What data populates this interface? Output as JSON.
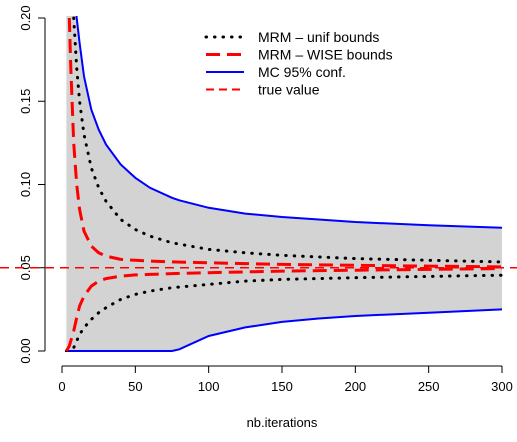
{
  "chart_data": {
    "type": "line",
    "title": "",
    "xlabel": "nb.iterations",
    "ylabel": "",
    "xlim": [
      0,
      300
    ],
    "ylim": [
      0,
      0.2
    ],
    "x_ticks": [
      0,
      50,
      100,
      150,
      200,
      250,
      300
    ],
    "x_tick_labels": [
      "0",
      "50",
      "100",
      "150",
      "200",
      "250",
      "300"
    ],
    "y_ticks": [
      0,
      0.05,
      0.1,
      0.15,
      0.2
    ],
    "y_tick_labels": [
      "0.00",
      "0.05",
      "0.10",
      "0.15",
      "0.20"
    ],
    "grid": false,
    "legend_position": "top-right",
    "colors": {
      "band": "#d3d3d3",
      "mc": "#0000ff",
      "wise": "#ff0000",
      "unif": "#000000",
      "true": "#ff0000"
    },
    "true_value": 0.05,
    "band": {
      "x": [
        3,
        5,
        8,
        10,
        12,
        15,
        20,
        25,
        30,
        40,
        50,
        60,
        75,
        80,
        100,
        125,
        150,
        175,
        200,
        250,
        300
      ],
      "upper": [
        0.35,
        0.3,
        0.22,
        0.2,
        0.185,
        0.165,
        0.145,
        0.133,
        0.124,
        0.112,
        0.104,
        0.098,
        0.092,
        0.0905,
        0.086,
        0.0825,
        0.0805,
        0.079,
        0.0775,
        0.0755,
        0.074
      ],
      "lower": [
        0,
        0,
        0,
        0,
        0,
        0,
        0,
        0,
        0,
        0,
        0,
        0,
        0,
        0.001,
        0.009,
        0.0142,
        0.0175,
        0.0195,
        0.021,
        0.023,
        0.025
      ]
    },
    "series": [
      {
        "name": "MRM – unif bounds",
        "style": "dotted",
        "color": "#000000",
        "upper": {
          "x": [
            8,
            10,
            12,
            15,
            20,
            25,
            30,
            40,
            50,
            60,
            75,
            100,
            125,
            150,
            200,
            250,
            300
          ],
          "y": [
            0.2,
            0.17,
            0.15,
            0.13,
            0.11,
            0.098,
            0.09,
            0.079,
            0.073,
            0.069,
            0.065,
            0.061,
            0.059,
            0.0575,
            0.0555,
            0.0545,
            0.0535
          ]
        },
        "lower": {
          "x": [
            3,
            8,
            12,
            15,
            20,
            25,
            30,
            40,
            50,
            60,
            75,
            100,
            125,
            150,
            200,
            250,
            300
          ],
          "y": [
            0,
            0.002,
            0.01,
            0.014,
            0.019,
            0.023,
            0.026,
            0.031,
            0.034,
            0.036,
            0.038,
            0.04,
            0.042,
            0.043,
            0.044,
            0.0448,
            0.0455
          ]
        }
      },
      {
        "name": "MRM – WISE bounds",
        "style": "dashed",
        "color": "#ff0000",
        "upper": {
          "x": [
            5,
            6,
            8,
            10,
            12,
            15,
            20,
            25,
            30,
            40,
            50,
            60,
            75,
            100,
            125,
            150,
            200,
            250,
            300
          ],
          "y": [
            0.2,
            0.17,
            0.125,
            0.1,
            0.085,
            0.072,
            0.063,
            0.059,
            0.057,
            0.055,
            0.0545,
            0.054,
            0.0535,
            0.053,
            0.0525,
            0.052,
            0.0515,
            0.051,
            0.0505
          ]
        },
        "lower": {
          "x": [
            3,
            5,
            8,
            10,
            12,
            15,
            20,
            25,
            30,
            40,
            50,
            60,
            75,
            100,
            125,
            150,
            200,
            250,
            300
          ],
          "y": [
            0,
            0.003,
            0.012,
            0.02,
            0.027,
            0.033,
            0.039,
            0.042,
            0.0435,
            0.045,
            0.0457,
            0.046,
            0.0465,
            0.047,
            0.0475,
            0.048,
            0.0485,
            0.049,
            0.0495
          ]
        }
      },
      {
        "name": "MC 95% conf.",
        "style": "solid",
        "color": "#0000ff"
      },
      {
        "name": "true value",
        "style": "dashed",
        "color": "#ff0000"
      }
    ]
  }
}
